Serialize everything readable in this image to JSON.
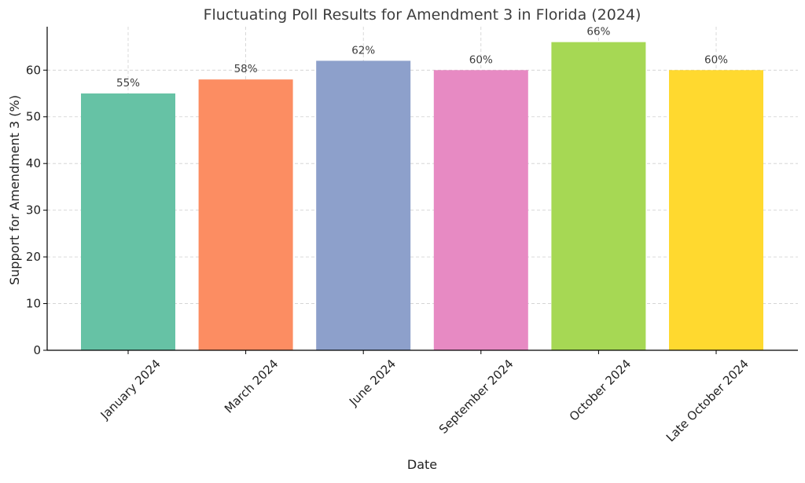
{
  "chart_data": {
    "type": "bar",
    "title": "Fluctuating Poll Results for Amendment 3 in Florida (2024)",
    "xlabel": "Date",
    "ylabel": "Support for Amendment 3 (%)",
    "categories": [
      "January 2024",
      "March 2024",
      "June 2024",
      "September 2024",
      "October 2024",
      "Late October 2024"
    ],
    "values": [
      55,
      58,
      62,
      60,
      66,
      60
    ],
    "data_labels": [
      "55%",
      "58%",
      "62%",
      "60%",
      "66%",
      "60%"
    ],
    "colors": [
      "#66c2a5",
      "#fc8d62",
      "#8da0cb",
      "#e78ac3",
      "#a6d854",
      "#ffd92f"
    ],
    "ylim": [
      0,
      69.3
    ],
    "yticks": [
      0,
      10,
      20,
      30,
      40,
      50,
      60
    ],
    "grid": true,
    "x_tick_rotation": -45
  }
}
